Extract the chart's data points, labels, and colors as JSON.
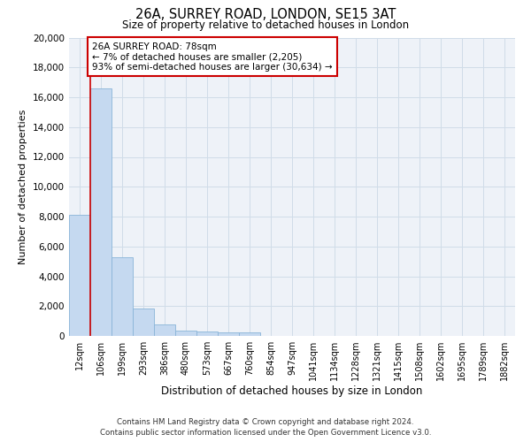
{
  "title": "26A, SURREY ROAD, LONDON, SE15 3AT",
  "subtitle": "Size of property relative to detached houses in London",
  "xlabel": "Distribution of detached houses by size in London",
  "ylabel": "Number of detached properties",
  "bar_color": "#c5d9f0",
  "bar_edge_color": "#8ab4d8",
  "grid_color": "#d0dce8",
  "background_color": "#eef2f8",
  "annotation_box_color": "#ffffff",
  "annotation_box_border": "#cc0000",
  "property_line_color": "#cc0000",
  "categories": [
    "12sqm",
    "106sqm",
    "199sqm",
    "293sqm",
    "386sqm",
    "480sqm",
    "573sqm",
    "667sqm",
    "760sqm",
    "854sqm",
    "947sqm",
    "1041sqm",
    "1134sqm",
    "1228sqm",
    "1321sqm",
    "1415sqm",
    "1508sqm",
    "1602sqm",
    "1695sqm",
    "1789sqm",
    "1882sqm"
  ],
  "values": [
    8100,
    16600,
    5300,
    1850,
    750,
    380,
    290,
    230,
    220,
    0,
    0,
    0,
    0,
    0,
    0,
    0,
    0,
    0,
    0,
    0,
    0
  ],
  "ylim": [
    0,
    20000
  ],
  "yticks": [
    0,
    2000,
    4000,
    6000,
    8000,
    10000,
    12000,
    14000,
    16000,
    18000,
    20000
  ],
  "annotation_text": "26A SURREY ROAD: 78sqm\n← 7% of detached houses are smaller (2,205)\n93% of semi-detached houses are larger (30,634) →",
  "footer_line1": "Contains HM Land Registry data © Crown copyright and database right 2024.",
  "footer_line2": "Contains public sector information licensed under the Open Government Licence v3.0."
}
